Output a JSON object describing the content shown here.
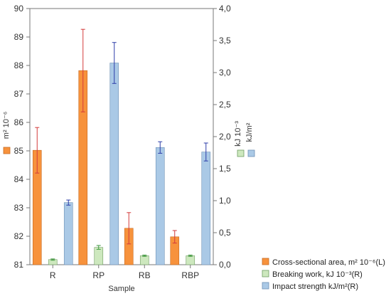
{
  "chart_data": {
    "type": "bar",
    "title": "",
    "xlabel": "Sample",
    "categories": [
      "R",
      "RP",
      "RB",
      "RBP"
    ],
    "y_left": {
      "range": [
        81,
        90
      ],
      "ticks": [
        "81",
        "82",
        "83",
        "84",
        "85",
        "86",
        "87",
        "88",
        "89",
        "90"
      ],
      "label": "m² 10⁻⁶"
    },
    "y_right": {
      "range": [
        0,
        4
      ],
      "ticks": [
        "0,0",
        "0,5",
        "1,0",
        "1,5",
        "2,0",
        "2,5",
        "3,0",
        "3,5",
        "4,0"
      ],
      "label_primary": "kJ 10⁻³",
      "label_secondary": "kJ/m²"
    },
    "series": [
      {
        "name": "Cross-sectional area, m² 10⁻⁶(L)",
        "axis": "left",
        "color": "#f7923c",
        "error_color": "#d23a3a",
        "values": [
          85.02,
          87.82,
          82.28,
          81.98
        ],
        "errors": [
          0.8,
          1.45,
          0.55,
          0.22
        ]
      },
      {
        "name": "Breaking work, kJ 10⁻³(R)",
        "axis": "right",
        "color": "#cde8be",
        "error_color": "#3f9a3f",
        "values": [
          0.08,
          0.27,
          0.14,
          0.14
        ],
        "errors": [
          0.01,
          0.03,
          0.01,
          0.01
        ]
      },
      {
        "name": "Impact strength kJ/m²(R)",
        "axis": "right",
        "color": "#aac9e6",
        "error_color": "#2d3da8",
        "values": [
          0.97,
          3.15,
          1.83,
          1.76
        ],
        "errors": [
          0.04,
          0.32,
          0.09,
          0.14
        ]
      }
    ],
    "legend": {
      "position": "bottom-right",
      "items": [
        "Cross-sectional area, m² 10⁻⁶(L)",
        "Breaking work, kJ 10⁻³(R)",
        "Impact strength kJ/m²(R)"
      ]
    },
    "grid": false
  }
}
